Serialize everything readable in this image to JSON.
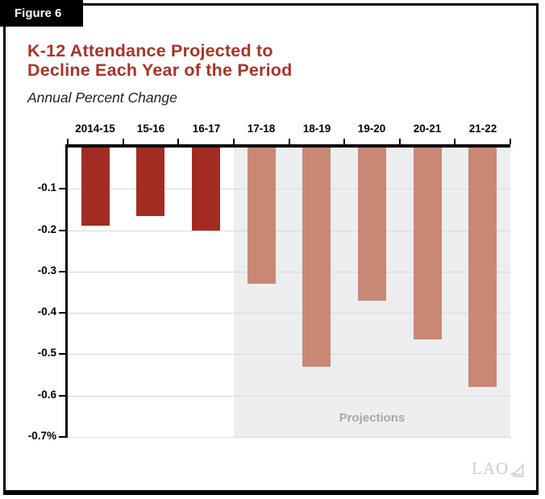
{
  "figure_label": "Figure 6",
  "title": {
    "line1": "K-12 Attendance Projected to",
    "line2": "Decline Each Year of the Period"
  },
  "subtitle": "Annual Percent Change",
  "projections_label": "Projections",
  "logo_text": "LAO",
  "colors": {
    "title": "#A5352B",
    "actual_bar": "#A32C22",
    "projected_bar": "#C98876",
    "projection_bg": "#EDEEF0",
    "gridline": "#D9D9DB",
    "projections_text": "#A7A9AC",
    "logo": "#C8CBD0"
  },
  "chart_data": {
    "type": "bar",
    "title": "K-12 Attendance Projected to Decline Each Year of the Period",
    "subtitle": "Annual Percent Change",
    "categories": [
      "2014-15",
      "15-16",
      "16-17",
      "17-18",
      "18-19",
      "19-20",
      "20-21",
      "21-22"
    ],
    "values": [
      -0.19,
      -0.165,
      -0.2,
      -0.33,
      -0.53,
      -0.37,
      -0.465,
      -0.58
    ],
    "projected": [
      false,
      false,
      false,
      true,
      true,
      true,
      true,
      true
    ],
    "y_ticks": [
      "-0.1",
      "-0.2",
      "-0.3",
      "-0.4",
      "-0.5",
      "-0.6",
      "-0.7%"
    ],
    "ylim": [
      -0.7,
      0
    ],
    "ylabel": "Annual Percent Change",
    "grid": true,
    "annotation": "Projections",
    "annotation_region_start_category": "17-18",
    "legend": "none"
  }
}
